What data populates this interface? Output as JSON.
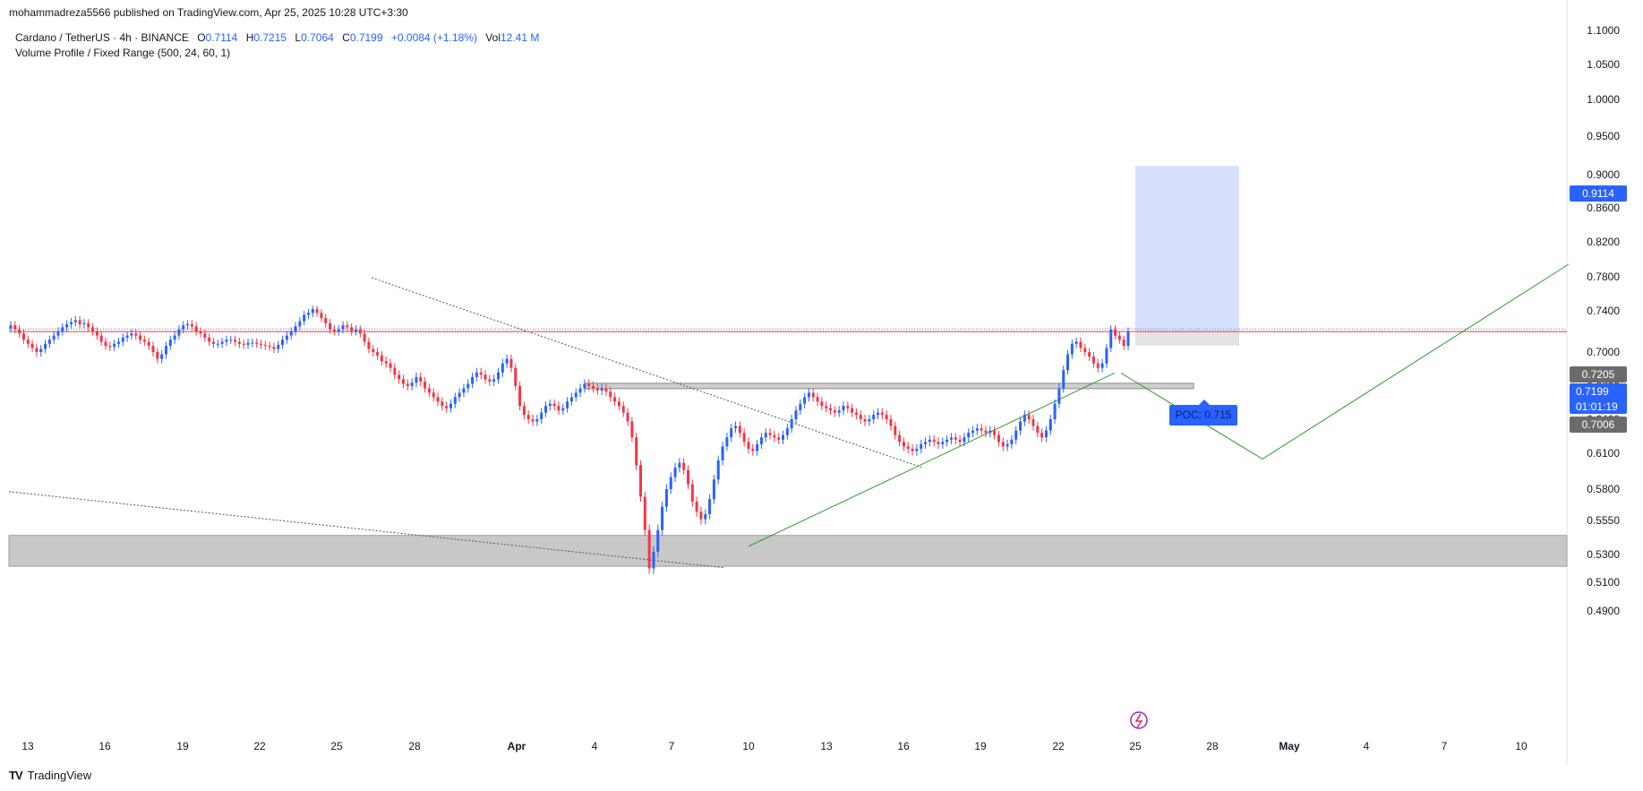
{
  "header": {
    "published_by": "mohammadreza5566 published on TradingView.com, Apr 25, 2025 10:28 UTC+3:30"
  },
  "legend": {
    "symbol": "Cardano / TetherUS · 4h · BINANCE",
    "open_label": "O",
    "open": "0.7114",
    "high_label": "H",
    "high": "0.7215",
    "low_label": "L",
    "low": "0.7064",
    "close_label": "C",
    "close": "0.7199",
    "change": "+0.0084 (+1.18%)",
    "vol_label": "Vol",
    "vol": "12.41 M",
    "indicator": "Volume Profile / Fixed Range (500, 24, 60, 1)"
  },
  "footer": {
    "brand": "TradingView"
  },
  "colors": {
    "up": "#2962ff",
    "down": "#f23645",
    "line": "#f23645",
    "trend": "#2e9e2e",
    "zone": "#c8c8c8",
    "target": "#d6e0fb"
  },
  "chart_data": {
    "type": "candlestick",
    "symbol": "ADA/USDT",
    "interval": "4h",
    "y_axis": {
      "ticks": [
        "1.1000",
        "1.0500",
        "1.0000",
        "0.9500",
        "0.9000",
        "0.8600",
        "0.8200",
        "0.7800",
        "0.7400",
        "0.7000",
        "0.6700",
        "0.6400",
        "0.6100",
        "0.5800",
        "0.5550",
        "0.5300",
        "0.5100",
        "0.4900"
      ]
    },
    "x_axis": {
      "ticks": [
        "13",
        "16",
        "19",
        "22",
        "25",
        "28",
        "Apr",
        "4",
        "7",
        "10",
        "13",
        "16",
        "19",
        "22",
        "25",
        "28",
        "May",
        "4",
        "7",
        "10"
      ]
    },
    "price_labels": {
      "target": "0.9114",
      "high": "0.7205",
      "last": "0.7199",
      "countdown": "01:01:19",
      "low": "0.7006"
    },
    "poc_label": "POC: 0.715",
    "current_price": 0.7199,
    "closes": [
      0.726,
      0.722,
      0.718,
      0.712,
      0.708,
      0.704,
      0.7,
      0.703,
      0.708,
      0.712,
      0.716,
      0.72,
      0.724,
      0.727,
      0.729,
      0.731,
      0.727,
      0.728,
      0.724,
      0.72,
      0.716,
      0.71,
      0.706,
      0.705,
      0.708,
      0.71,
      0.714,
      0.716,
      0.718,
      0.716,
      0.712,
      0.71,
      0.706,
      0.7,
      0.694,
      0.698,
      0.706,
      0.712,
      0.716,
      0.722,
      0.726,
      0.727,
      0.725,
      0.72,
      0.718,
      0.714,
      0.71,
      0.708,
      0.708,
      0.71,
      0.712,
      0.712,
      0.71,
      0.708,
      0.707,
      0.709,
      0.709,
      0.708,
      0.707,
      0.706,
      0.705,
      0.703,
      0.707,
      0.712,
      0.716,
      0.72,
      0.725,
      0.73,
      0.736,
      0.738,
      0.742,
      0.738,
      0.733,
      0.728,
      0.722,
      0.72,
      0.722,
      0.726,
      0.724,
      0.72,
      0.722,
      0.718,
      0.71,
      0.703,
      0.7,
      0.697,
      0.692,
      0.69,
      0.686,
      0.68,
      0.676,
      0.672,
      0.67,
      0.673,
      0.678,
      0.674,
      0.668,
      0.664,
      0.66,
      0.656,
      0.652,
      0.65,
      0.654,
      0.66,
      0.664,
      0.668,
      0.672,
      0.678,
      0.682,
      0.68,
      0.676,
      0.674,
      0.676,
      0.682,
      0.69,
      0.694,
      0.686,
      0.67,
      0.652,
      0.644,
      0.64,
      0.638,
      0.64,
      0.646,
      0.652,
      0.654,
      0.652,
      0.648,
      0.65,
      0.656,
      0.66,
      0.664,
      0.668,
      0.672,
      0.67,
      0.668,
      0.666,
      0.668,
      0.665,
      0.66,
      0.656,
      0.652,
      0.646,
      0.638,
      0.624,
      0.6,
      0.574,
      0.548,
      0.52,
      0.532,
      0.548,
      0.566,
      0.58,
      0.59,
      0.598,
      0.602,
      0.596,
      0.584,
      0.57,
      0.562,
      0.556,
      0.56,
      0.572,
      0.588,
      0.604,
      0.616,
      0.624,
      0.632,
      0.634,
      0.628,
      0.62,
      0.614,
      0.612,
      0.618,
      0.624,
      0.628,
      0.626,
      0.624,
      0.622,
      0.626,
      0.632,
      0.64,
      0.648,
      0.654,
      0.66,
      0.664,
      0.66,
      0.656,
      0.652,
      0.65,
      0.648,
      0.646,
      0.648,
      0.652,
      0.65,
      0.646,
      0.644,
      0.64,
      0.638,
      0.64,
      0.644,
      0.646,
      0.644,
      0.64,
      0.634,
      0.626,
      0.62,
      0.616,
      0.614,
      0.612,
      0.614,
      0.618,
      0.62,
      0.622,
      0.62,
      0.618,
      0.62,
      0.622,
      0.624,
      0.622,
      0.62,
      0.624,
      0.628,
      0.63,
      0.632,
      0.63,
      0.628,
      0.63,
      0.626,
      0.62,
      0.616,
      0.618,
      0.622,
      0.63,
      0.638,
      0.644,
      0.64,
      0.634,
      0.628,
      0.624,
      0.63,
      0.64,
      0.654,
      0.668,
      0.684,
      0.698,
      0.708,
      0.71,
      0.704,
      0.7,
      0.696,
      0.69,
      0.686,
      0.69,
      0.704,
      0.722,
      0.716,
      0.712,
      0.706,
      0.7199
    ]
  }
}
